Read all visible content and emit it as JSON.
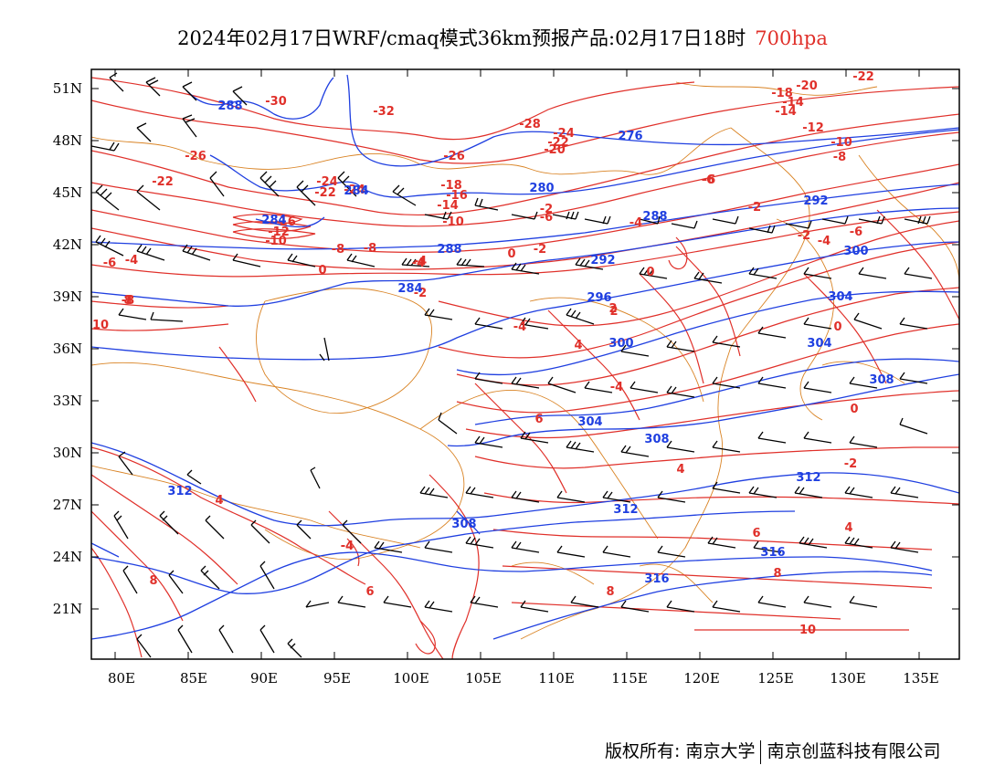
{
  "title": {
    "text": "2024年02月17日WRF/cmaq模式36km预报产品:02月17日18时",
    "level": "700hpa"
  },
  "colors": {
    "temperature": "#e0302a",
    "geopotential": "#1f3fe0",
    "boundary": "#d98324",
    "wind": "#000000"
  },
  "axes": {
    "lon_ticks": [
      "80E",
      "85E",
      "90E",
      "95E",
      "100E",
      "105E",
      "110E",
      "115E",
      "120E",
      "125E",
      "130E",
      "135E"
    ],
    "lat_ticks": [
      "51N",
      "48N",
      "45N",
      "42N",
      "39N",
      "36N",
      "33N",
      "30N",
      "27N",
      "24N",
      "21N"
    ]
  },
  "temperature_labels": [
    "-30",
    "-32",
    "-28",
    "-24",
    "-22",
    "-20",
    "-26",
    "-26",
    "-22",
    "-24",
    "-22",
    "-18",
    "-16",
    "-14",
    "-10",
    "-12",
    "-10",
    "-8",
    "-8",
    "-6",
    "-4",
    "-2",
    "0",
    "-2",
    "-6",
    "-4",
    "-2",
    "-14",
    "-12",
    "-10",
    "-8",
    "-6",
    "-4",
    "-2",
    "-4",
    "-8",
    "0",
    "2",
    "4",
    "6",
    "8",
    "10",
    "-2",
    "-6",
    "-4",
    "-6",
    "-4",
    "0",
    "-4",
    "0",
    "0",
    "2",
    "4",
    "-2",
    "-4",
    "4",
    "6",
    "-4",
    "4",
    "6",
    "8",
    "8",
    "8",
    "10",
    "-20",
    "-18",
    "-22",
    "-14",
    "-16",
    "-24"
  ],
  "geopotential_labels": [
    "288",
    "284",
    "276",
    "280",
    "288",
    "284",
    "292",
    "288",
    "284",
    "296",
    "300",
    "304",
    "292",
    "300",
    "304",
    "308",
    "304",
    "308",
    "312",
    "312",
    "308",
    "312",
    "316",
    "316"
  ],
  "credit": {
    "left": "版权所有: 南京大学",
    "right": "南京创蓝科技有限公司"
  }
}
